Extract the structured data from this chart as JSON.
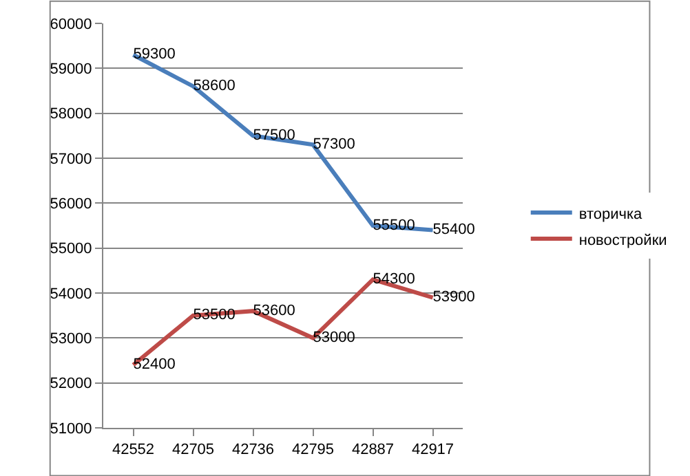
{
  "chart_data": {
    "type": "line",
    "categories": [
      "42552",
      "42705",
      "42736",
      "42795",
      "42887",
      "42917"
    ],
    "series": [
      {
        "name": "вторичка",
        "color": "#4a7ebb",
        "values": [
          59300,
          58600,
          57500,
          57300,
          55500,
          55400
        ]
      },
      {
        "name": "новостройки",
        "color": "#be4b48",
        "values": [
          52400,
          53500,
          53600,
          53000,
          54300,
          53900
        ]
      }
    ],
    "ylim": [
      51000,
      60000
    ],
    "yticks": [
      51000,
      52000,
      53000,
      54000,
      55000,
      56000,
      57000,
      58000,
      59000,
      60000
    ],
    "grid": "y",
    "legend": "right",
    "data_labels": true,
    "marker": "none",
    "line_style": "solid"
  }
}
